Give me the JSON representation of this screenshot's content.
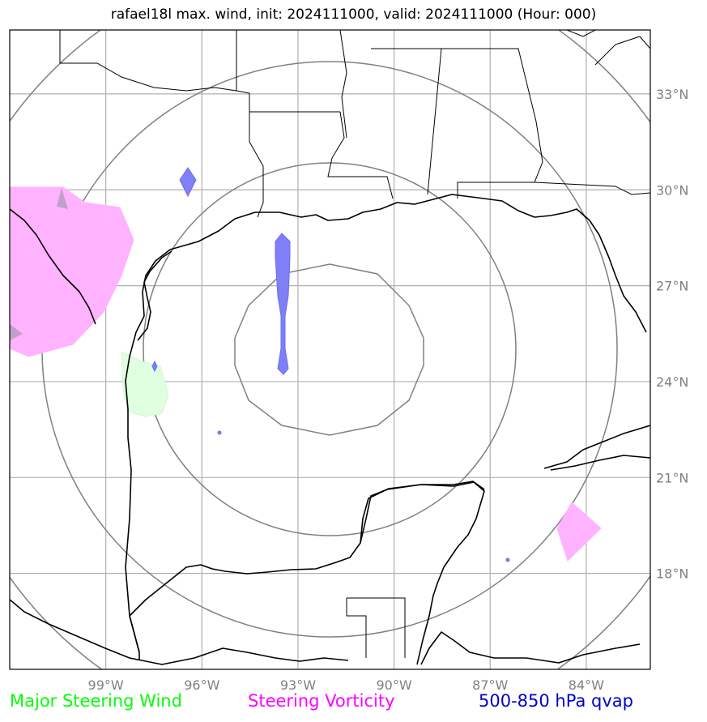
{
  "title": "rafael18l max. wind, init: 2024111000, valid: 2024111000 (Hour: 000)",
  "map": {
    "lon_range": [
      -102.0,
      -82.0
    ],
    "lat_range": [
      15.0,
      35.0
    ],
    "lon_ticks": [
      {
        "value": -99,
        "label": "99°W"
      },
      {
        "value": -96,
        "label": "96°W"
      },
      {
        "value": -93,
        "label": "93°W"
      },
      {
        "value": -90,
        "label": "90°W"
      },
      {
        "value": -87,
        "label": "87°W"
      },
      {
        "value": -84,
        "label": "84°W"
      }
    ],
    "lat_ticks": [
      {
        "value": 18,
        "label": "18°N"
      },
      {
        "value": 21,
        "label": "21°N"
      },
      {
        "value": 24,
        "label": "24°N"
      },
      {
        "value": 27,
        "label": "27°N"
      },
      {
        "value": 30,
        "label": "30°N"
      },
      {
        "value": 33,
        "label": "33°N"
      }
    ],
    "grid": true,
    "colors": {
      "grid": "#b0b0b0",
      "range_ring": "#808080",
      "coast": "#000000",
      "steering_wind": "#e0ffe0",
      "steering_vorticity": "#ffb3ff",
      "qvap": "#7f7ff7"
    }
  },
  "legend": {
    "steering_wind": {
      "label": "Major Steering Wind",
      "color": "#00ff00"
    },
    "steering_vorticity": {
      "label": "Steering Vorticity",
      "color": "#ff00ff"
    },
    "qvap": {
      "label": "500-850 hPa qvap",
      "color": "#0000cc"
    }
  }
}
